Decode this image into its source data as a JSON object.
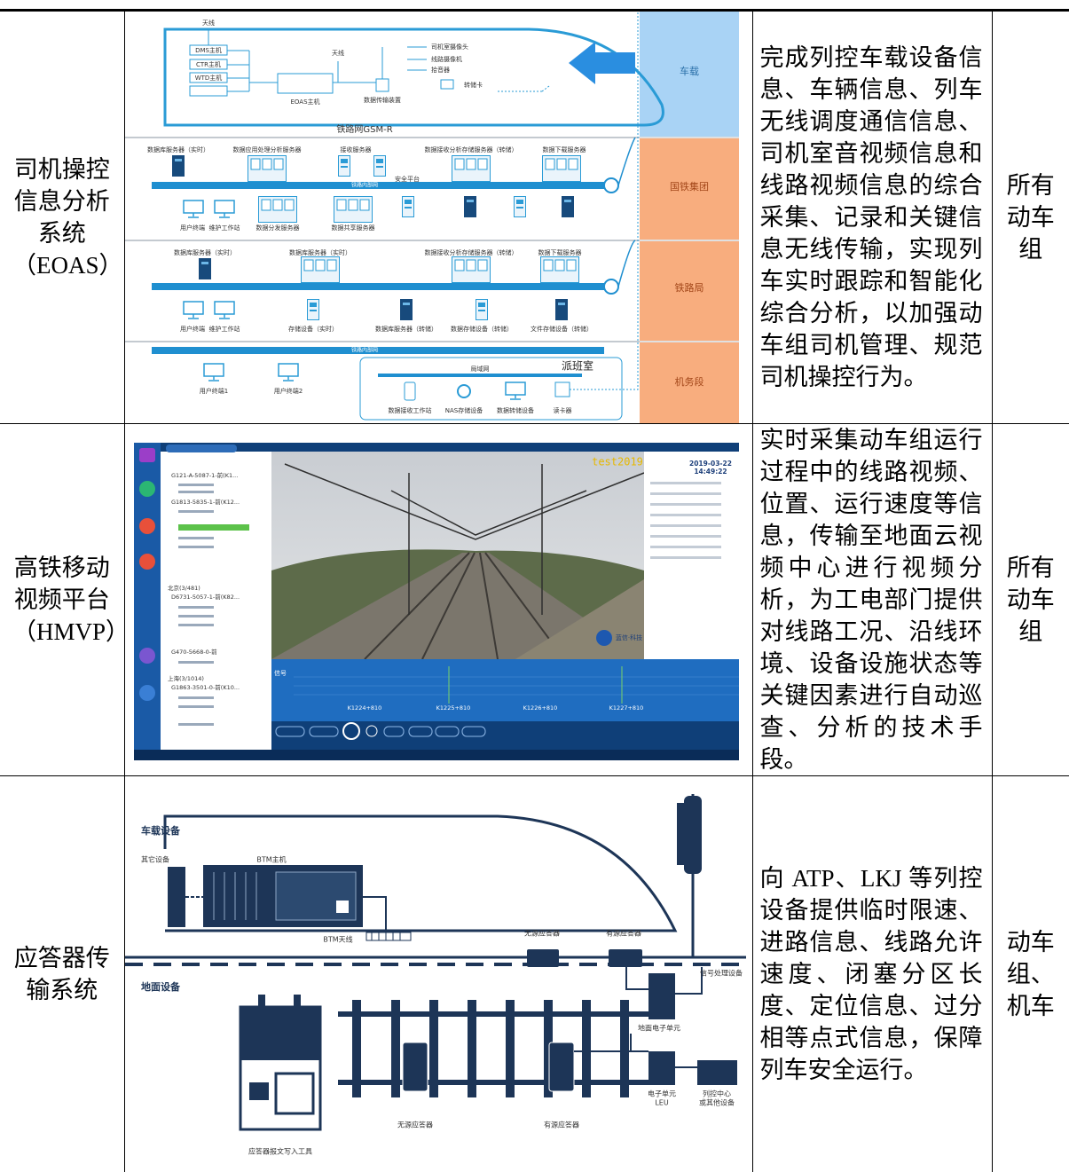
{
  "table": {
    "rows": [
      {
        "system": "司机操控信息分析系统（EOAS）",
        "figure": {
          "antenna": "天线",
          "dms": "DMS主机",
          "ctr": "CTR主机",
          "wtd": "WTD主机",
          "eoas-host": "EOAS主机",
          "antenna-2": "天线",
          "cab-camera": "司机室摄像头",
          "line-camera": "线路摄像机",
          "pickup": "拾音器",
          "transfer-card": "转储卡",
          "transmission": "数据传输装置",
          "onboard": "车载",
          "gsmr": "铁路网GSM-R",
          "group": "国铁集团",
          "bureau": "铁路局",
          "depot": "机务段",
          "dispatch-room": "派班室",
          "intranet": "铁路内部网",
          "security": "安全平台",
          "user-terminal": "用户终端",
          "maintenance": "维护工作站",
          "distribution": "数据分发服务器",
          "sharing": "数据共享服务器",
          "db-realtime": "数据库服务器（实时）",
          "app-server": "数据应用处理分析服务器",
          "receiver": "接收服务器",
          "storage-analysis": "数据接收分析存储服务器（转储）",
          "download": "数据下载服务器",
          "storage-realtime": "存储设备（实时）",
          "db-dump": "数据库服务器（转储）",
          "storage-dump": "数据存储设备（转储）",
          "file-storage": "文件存储设备（转储）",
          "user-1": "用户终端1",
          "user-2": "用户终端2",
          "lan": "局域网",
          "workstation": "数据接收工作站",
          "nas": "NAS存储设备",
          "dump-device": "数据转储设备",
          "card-reader": "读卡器"
        },
        "description": "完成列控车载设备信息、车辆信息、列车无线调度通信信息、司机室音视频信息和线路视频信息的综合采集、记录和关键信息无线传输，实现列车实时跟踪和智能化综合分析，以加强动车组司机管理、规范司机操控行为。",
        "scope": "所有动车组"
      },
      {
        "system": "高铁移动视频平台（HMVP）",
        "figure": {
          "watermark": "test2019",
          "date": "2019-03-22",
          "time": "14:49:22",
          "beijing": "北京(3/481)",
          "shanghai": "上海(3/1014)",
          "train-1": "G121-A-5087-1-前(K1...",
          "train-2": "G1813-5835-1-前(K12...",
          "train-3": "D6731-5057-1-前(K82...",
          "train-4": "G470-5668-0-前",
          "train-5": "G1863-3501-0-前(K10...",
          "km-1": "K1224+810",
          "km-2": "K1225+810",
          "km-3": "K1226+810",
          "km-4": "K1227+810",
          "signal": "信号",
          "logo": "蓝信·科技"
        },
        "description": "实时采集动车组运行过程中的线路视频、位置、运行速度等信息，传输至地面云视频中心进行视频分析，为工电部门提供对线路工况、沿线环境、设备设施状态等关键因素进行自动巡查、分析的技术手段。",
        "scope": "所有动车组"
      },
      {
        "system": "应答器传输系统",
        "figure": {
          "onboard": "车载设备",
          "other": "其它设备",
          "btm-host": "BTM主机",
          "btm-antenna": "BTM天线",
          "passive-1": "无源应答器",
          "active-1": "有源应答器",
          "signal-processing": "信号处理设备",
          "ground": "地面设备",
          "ground-unit": "地面电子单元",
          "leu-1": "电子单元",
          "leu-2": "LEU",
          "control-1": "列控中心",
          "control-2": "或其他设备",
          "writer": "应答器报文写入工具",
          "passive-2": "无源应答器",
          "active-2": "有源应答器"
        },
        "description": "向 ATP、LKJ 等列控设备提供临时限速、进路信息、线路允许速度、闭塞分区长度、定位信息、过分相等点式信息，保障列车安全运行。",
        "scope": "动车组、机车"
      }
    ]
  }
}
